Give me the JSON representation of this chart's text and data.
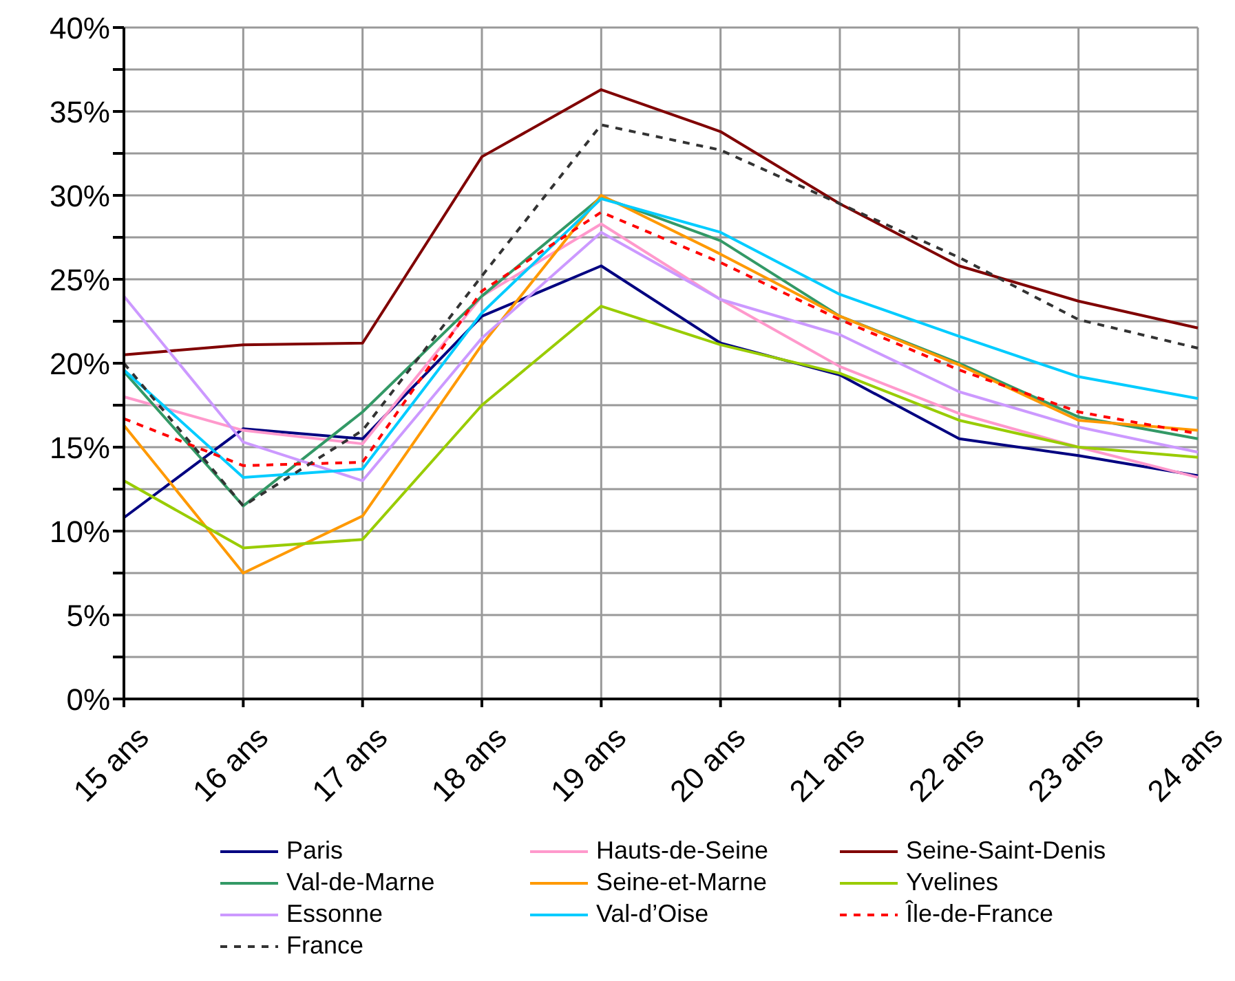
{
  "chart_data": {
    "type": "line",
    "categories": [
      "15 ans",
      "16 ans",
      "17 ans",
      "18 ans",
      "19 ans",
      "20 ans",
      "21 ans",
      "22 ans",
      "23 ans",
      "24 ans"
    ],
    "ylim": [
      0,
      40
    ],
    "yticks": [
      {
        "value": 0,
        "label": "0%"
      },
      {
        "value": 2.5,
        "label": null
      },
      {
        "value": 5,
        "label": "5%"
      },
      {
        "value": 7.5,
        "label": null
      },
      {
        "value": 10,
        "label": "10%"
      },
      {
        "value": 12.5,
        "label": null
      },
      {
        "value": 15,
        "label": "15%"
      },
      {
        "value": 17.5,
        "label": null
      },
      {
        "value": 20,
        "label": "20%"
      },
      {
        "value": 22.5,
        "label": null
      },
      {
        "value": 25,
        "label": "25%"
      },
      {
        "value": 27.5,
        "label": null
      },
      {
        "value": 30,
        "label": "30%"
      },
      {
        "value": 32.5,
        "label": null
      },
      {
        "value": 35,
        "label": "35%"
      },
      {
        "value": 37.5,
        "label": null
      },
      {
        "value": 40,
        "label": "40%"
      }
    ],
    "grid": true,
    "legend": "bottom",
    "marker": "none",
    "line_style": "solid",
    "series": [
      {
        "name": "Paris",
        "color": "#000080",
        "values": [
          10.8,
          16.1,
          15.5,
          22.8,
          25.8,
          21.2,
          19.3,
          15.5,
          14.5,
          13.3
        ]
      },
      {
        "name": "Hauts-de-Seine",
        "color": "#ff99cc",
        "values": [
          18.0,
          16.0,
          15.2,
          24.0,
          28.3,
          23.8,
          19.8,
          17.0,
          15.0,
          13.2
        ]
      },
      {
        "name": "Seine-Saint-Denis",
        "color": "#800000",
        "values": [
          20.5,
          21.1,
          21.2,
          32.3,
          36.3,
          33.8,
          29.5,
          25.8,
          23.7,
          22.1
        ]
      },
      {
        "name": "Val-de-Marne",
        "color": "#339966",
        "values": [
          19.5,
          11.5,
          17.1,
          24.0,
          29.9,
          27.3,
          22.8,
          20.0,
          16.8,
          15.5
        ]
      },
      {
        "name": "Seine-et-Marne",
        "color": "#ff9900",
        "values": [
          16.3,
          7.5,
          10.9,
          21.1,
          30.0,
          26.5,
          22.8,
          19.9,
          16.6,
          16.0
        ]
      },
      {
        "name": "Yvelines",
        "color": "#99cc00",
        "values": [
          13.0,
          9.0,
          9.5,
          17.5,
          23.4,
          21.1,
          19.4,
          16.6,
          15.0,
          14.4
        ]
      },
      {
        "name": "Essonne",
        "color": "#cc99ff",
        "values": [
          24.0,
          15.3,
          13.0,
          21.5,
          27.8,
          23.8,
          21.7,
          18.3,
          16.2,
          14.7
        ]
      },
      {
        "name": "Val-d’Oise",
        "color": "#00ccff",
        "values": [
          19.6,
          13.2,
          13.7,
          23.0,
          29.8,
          27.8,
          24.1,
          21.6,
          19.2,
          17.9
        ]
      },
      {
        "name": "Île-de-France",
        "color": "#ff0000",
        "line_style": "dashed",
        "values": [
          16.7,
          13.9,
          14.1,
          24.3,
          29.0,
          26.0,
          22.6,
          19.6,
          17.1,
          15.8
        ]
      },
      {
        "name": "France",
        "color": "#333333",
        "line_style": "dashed",
        "values": [
          20.0,
          11.5,
          16.0,
          25.2,
          34.2,
          32.7,
          29.5,
          26.3,
          22.6,
          20.9
        ]
      }
    ]
  }
}
